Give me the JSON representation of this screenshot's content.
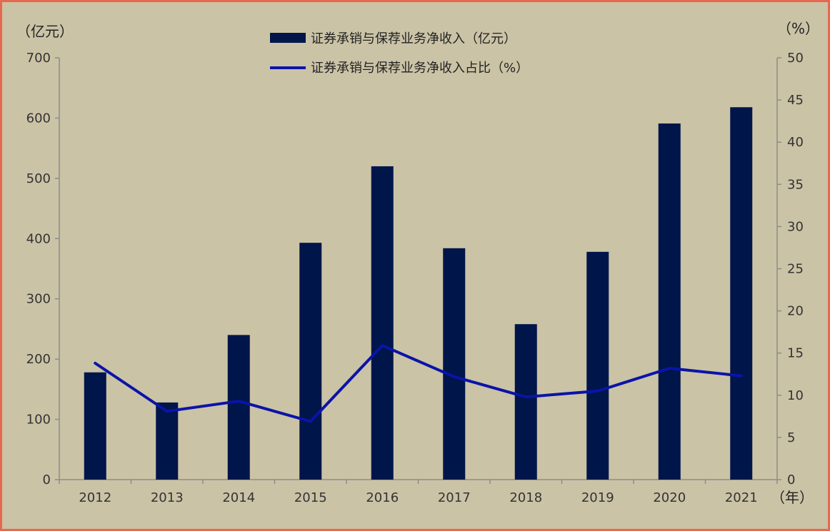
{
  "chart_data": {
    "type": "bar",
    "categories": [
      "2012",
      "2013",
      "2014",
      "2015",
      "2016",
      "2017",
      "2018",
      "2019",
      "2020",
      "2021"
    ],
    "series": [
      {
        "name": "证券承销与保荐业务净收入（亿元）",
        "type": "bar",
        "axis": "left",
        "color": "#00154a",
        "values": [
          178,
          128,
          240,
          393,
          520,
          384,
          258,
          378,
          591,
          618
        ]
      },
      {
        "name": "证券承销与保荐业务净收入占比（%）",
        "type": "line",
        "axis": "right",
        "color": "#0a14a8",
        "values": [
          13.8,
          8.1,
          9.3,
          6.9,
          15.9,
          12.2,
          9.8,
          10.5,
          13.2,
          12.3
        ]
      }
    ],
    "y_left": {
      "unit": "（亿元）",
      "range": [
        0,
        700
      ],
      "ticks": [
        "0",
        "100",
        "200",
        "300",
        "400",
        "500",
        "600",
        "700"
      ]
    },
    "y_right": {
      "unit": "（%）",
      "range": [
        0,
        50
      ],
      "ticks": [
        "0",
        "5",
        "10",
        "15",
        "20",
        "25",
        "30",
        "35",
        "40",
        "45",
        "50"
      ]
    },
    "x_unit": "（年）",
    "legend_position": "top-center",
    "grid": false
  }
}
